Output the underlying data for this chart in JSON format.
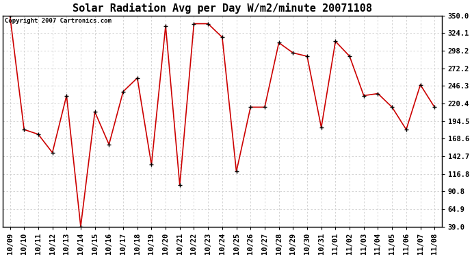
{
  "title": "Solar Radiation Avg per Day W/m2/minute 20071108",
  "copyright": "Copyright 2007 Cartronics.com",
  "x_labels": [
    "10/09",
    "10/10",
    "10/11",
    "10/12",
    "10/13",
    "10/14",
    "10/15",
    "10/16",
    "10/17",
    "10/18",
    "10/19",
    "10/20",
    "10/21",
    "10/22",
    "10/23",
    "10/24",
    "10/25",
    "10/26",
    "10/27",
    "10/28",
    "10/29",
    "10/30",
    "10/31",
    "11/01",
    "11/02",
    "11/03",
    "11/04",
    "11/05",
    "11/06",
    "11/07",
    "11/08"
  ],
  "y_values": [
    350.0,
    182.0,
    175.0,
    148.0,
    232.0,
    39.0,
    208.0,
    160.0,
    238.0,
    258.0,
    130.0,
    335.0,
    100.0,
    338.0,
    338.0,
    318.0,
    120.0,
    215.0,
    215.0,
    310.0,
    295.0,
    290.0,
    185.0,
    312.0,
    290.0,
    232.0,
    235.0,
    215.0,
    182.0,
    248.0,
    215.0
  ],
  "y_ticks": [
    39.0,
    64.9,
    90.8,
    116.8,
    142.7,
    168.6,
    194.5,
    220.4,
    246.3,
    272.2,
    298.2,
    324.1,
    350.0
  ],
  "line_color": "#cc0000",
  "marker": "+",
  "marker_color": "#000000",
  "bg_color": "#ffffff",
  "grid_color": "#cccccc",
  "title_fontsize": 11,
  "tick_fontsize": 7.5,
  "copyright_fontsize": 6.5
}
